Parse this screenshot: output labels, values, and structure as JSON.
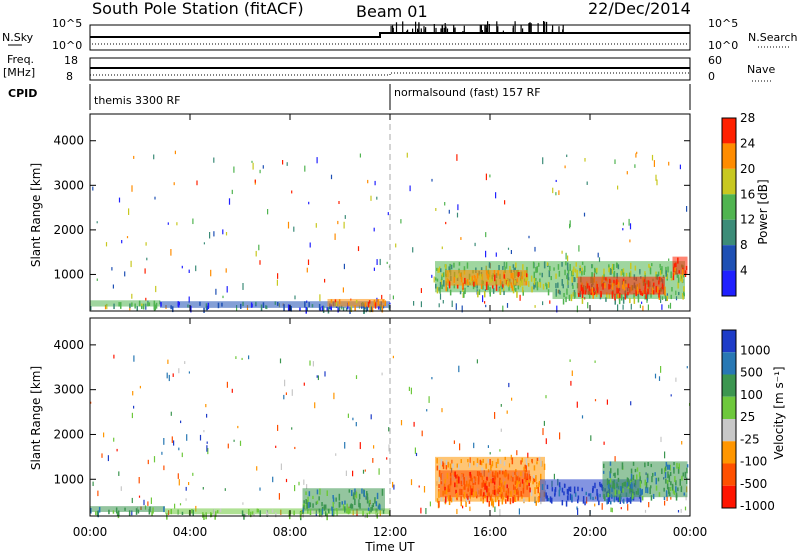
{
  "header": {
    "station": "South Pole Station (fitACF)",
    "beam": "Beam 01",
    "date": "22/Dec/2014"
  },
  "status_panels": {
    "nsky_label": "N.Sky",
    "nsky_ticks": [
      "10^5",
      "10^0"
    ],
    "nsearch_label": "N.Search",
    "nsearch_ticks": [
      "10^5",
      "10^0"
    ],
    "freq_label": "Freq.",
    "freq_unit": "[MHz]",
    "freq_ticks": [
      "18",
      "8"
    ],
    "nave_label": "Nave",
    "nave_ticks": [
      "60",
      "0"
    ],
    "cpid_label": "CPID",
    "cpid_segments": [
      {
        "name": "themis 3300 RF",
        "start_hour": 0
      },
      {
        "name": "normalsound (fast) 157 RF",
        "start_hour": 12
      }
    ]
  },
  "chart_data": [
    {
      "type": "heatmap",
      "panel": "power",
      "ylabel": "Slant Range [km]",
      "yticks": [
        "1000",
        "2000",
        "3000",
        "4000"
      ],
      "ylim": [
        180,
        4600
      ],
      "xlim": [
        0,
        24
      ],
      "colorbar_label": "Power [dB]",
      "colorbar_ticks": [
        "4",
        "8",
        "12",
        "16",
        "20",
        "24",
        "28"
      ],
      "colorbar_colors": [
        "#2020ff",
        "#1e50b4",
        "#3c8c78",
        "#50b450",
        "#c8c820",
        "#ff8c00",
        "#ff2000"
      ],
      "regions": [
        {
          "x0": 0.0,
          "x1": 2.8,
          "y0": 280,
          "y1": 420,
          "value": 14
        },
        {
          "x0": 2.8,
          "x1": 12.0,
          "y0": 250,
          "y1": 400,
          "value": 8
        },
        {
          "x0": 9.5,
          "x1": 11.8,
          "y0": 280,
          "y1": 450,
          "value": 22
        },
        {
          "x0": 13.8,
          "x1": 18.5,
          "y0": 600,
          "y1": 1300,
          "value": 16
        },
        {
          "x0": 14.2,
          "x1": 17.5,
          "y0": 750,
          "y1": 1100,
          "value": 24
        },
        {
          "x0": 18.5,
          "x1": 23.8,
          "y0": 450,
          "y1": 1300,
          "value": 14
        },
        {
          "x0": 19.5,
          "x1": 23.0,
          "y0": 550,
          "y1": 950,
          "value": 26
        },
        {
          "x0": 23.3,
          "x1": 23.9,
          "y0": 1000,
          "y1": 1400,
          "value": 28
        }
      ]
    },
    {
      "type": "heatmap",
      "panel": "velocity",
      "ylabel": "Slant Range [km]",
      "yticks": [
        "1000",
        "2000",
        "3000",
        "4000"
      ],
      "ylim": [
        180,
        4600
      ],
      "xlim": [
        0,
        24
      ],
      "xticks": [
        "00:00",
        "04:00",
        "08:00",
        "12:00",
        "16:00",
        "20:00",
        "00:00"
      ],
      "xlabel": "Time UT",
      "colorbar_label": "Velocity [m s⁻¹]",
      "colorbar_ticks": [
        "1000",
        "500",
        "100",
        "25",
        "-25",
        "-100",
        "-500",
        "-1000"
      ],
      "colorbar_colors": [
        "#1e3cc8",
        "#2878b4",
        "#3c9650",
        "#6ec83c",
        "#c8c8c8",
        "#ff9600",
        "#ff5000",
        "#ff1400"
      ],
      "regions": [
        {
          "x0": 0.0,
          "x1": 3.0,
          "y0": 270,
          "y1": 400,
          "value": 100
        },
        {
          "x0": 3.0,
          "x1": 12.0,
          "y0": 220,
          "y1": 350,
          "value": 25
        },
        {
          "x0": 8.5,
          "x1": 11.8,
          "y0": 300,
          "y1": 800,
          "value": 100
        },
        {
          "x0": 13.8,
          "x1": 18.2,
          "y0": 500,
          "y1": 1500,
          "value": -100
        },
        {
          "x0": 14.0,
          "x1": 17.6,
          "y0": 600,
          "y1": 1200,
          "value": -500
        },
        {
          "x0": 18.0,
          "x1": 22.0,
          "y0": 500,
          "y1": 1000,
          "value": 1000
        },
        {
          "x0": 20.5,
          "x1": 23.9,
          "y0": 600,
          "y1": 1400,
          "value": 100
        }
      ]
    }
  ],
  "colors": {
    "frame": "#000000",
    "background": "#ffffff"
  }
}
